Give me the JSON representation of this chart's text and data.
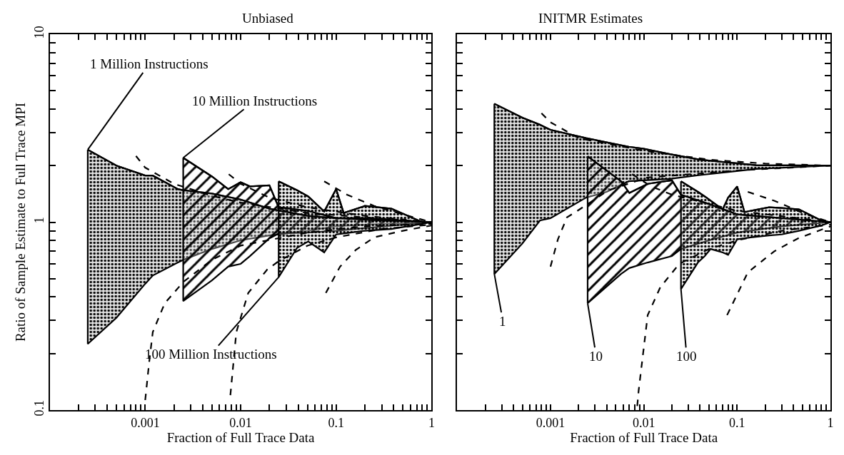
{
  "chart_data": [
    {
      "type": "line",
      "title": "Unbiased",
      "xlabel": "Fraction of Full Trace Data",
      "ylabel": "Ratio of Sample Estimate to Full Trace MPI",
      "log": "xy",
      "xlim": [
        0.0001,
        1
      ],
      "ylim": [
        0.1,
        10
      ],
      "xticks": [
        {
          "value": 0.0002,
          "label": null
        },
        {
          "value": 0.0003,
          "label": null
        },
        {
          "value": 0.0004,
          "label": null
        },
        {
          "value": 0.0005,
          "label": null
        },
        {
          "value": 0.0006,
          "label": null
        },
        {
          "value": 0.0007,
          "label": null
        },
        {
          "value": 0.0008,
          "label": null
        },
        {
          "value": 0.0009,
          "label": null
        },
        0.001,
        {
          "value": 0.002,
          "label": null
        },
        {
          "value": 0.003,
          "label": null
        },
        {
          "value": 0.004,
          "label": null
        },
        {
          "value": 0.005,
          "label": null
        },
        {
          "value": 0.006,
          "label": null
        },
        {
          "value": 0.007,
          "label": null
        },
        {
          "value": 0.008,
          "label": null
        },
        {
          "value": 0.009,
          "label": null
        },
        0.01,
        {
          "value": 0.02,
          "label": null
        },
        {
          "value": 0.03,
          "label": null
        },
        {
          "value": 0.04,
          "label": null
        },
        {
          "value": 0.05,
          "label": null
        },
        {
          "value": 0.06,
          "label": null
        },
        {
          "value": 0.07,
          "label": null
        },
        {
          "value": 0.08,
          "label": null
        },
        {
          "value": 0.09,
          "label": null
        },
        0.1,
        {
          "value": 0.2,
          "label": null
        },
        {
          "value": 0.3,
          "label": null
        },
        {
          "value": 0.4,
          "label": null
        },
        {
          "value": 0.5,
          "label": null
        },
        {
          "value": 0.6,
          "label": null
        },
        {
          "value": 0.7,
          "label": null
        },
        {
          "value": 0.8,
          "label": null
        },
        {
          "value": 0.9,
          "label": null
        },
        1
      ],
      "yticks": [
        0.1,
        {
          "value": 0.2,
          "label": null
        },
        {
          "value": 0.3,
          "label": null
        },
        {
          "value": 0.4,
          "label": null
        },
        {
          "value": 0.5,
          "label": null
        },
        {
          "value": 0.6,
          "label": null
        },
        {
          "value": 0.7,
          "label": null
        },
        {
          "value": 0.8,
          "label": null
        },
        {
          "value": 0.9,
          "label": null
        },
        1,
        {
          "value": 2,
          "label": null
        },
        {
          "value": 3,
          "label": null
        },
        {
          "value": 4,
          "label": null
        },
        {
          "value": 5,
          "label": null
        },
        {
          "value": 6,
          "label": null
        },
        {
          "value": 7,
          "label": null
        },
        {
          "value": 8,
          "label": null
        },
        {
          "value": 9,
          "label": null
        },
        10
      ],
      "series": [
        {
          "color": "#000000",
          "x": [
            0.00025,
            0.0005,
            0.001,
            0.0012,
            0.0022,
            0.0025,
            0.005,
            0.01,
            0.02,
            0.05,
            0.1,
            0.3,
            1
          ],
          "values": [
            2.43,
            2.0,
            1.77,
            1.77,
            1.5,
            1.48,
            1.42,
            1.32,
            1.18,
            1.08,
            1.05,
            1.02,
            1.0
          ],
          "upper": [
            2.43,
            2.0,
            1.77,
            1.77,
            1.5,
            1.48,
            1.42,
            1.32,
            1.18,
            1.08,
            1.05,
            1.02,
            1.0
          ],
          "lower": [
            0.225,
            0.31,
            0.47,
            0.52,
            0.61,
            0.63,
            0.72,
            0.8,
            0.85,
            0.9,
            0.95,
            0.98,
            1.0
          ]
        },
        {
          "color": "#000000",
          "x": [
            0.0025,
            0.005,
            0.0074,
            0.01,
            0.0125,
            0.02,
            0.025,
            0.05,
            0.1,
            0.2,
            0.5,
            1
          ],
          "values": [
            2.2,
            1.75,
            1.5,
            1.63,
            1.55,
            1.57,
            1.2,
            1.15,
            1.05,
            1.05,
            1.02,
            1.0
          ],
          "upper": [
            2.2,
            1.75,
            1.5,
            1.63,
            1.55,
            1.57,
            1.2,
            1.15,
            1.05,
            1.05,
            1.02,
            1.0
          ],
          "lower": [
            0.38,
            0.49,
            0.58,
            0.6,
            0.66,
            0.82,
            0.87,
            0.88,
            0.9,
            0.93,
            0.97,
            1.0
          ]
        },
        {
          "color": "#000000",
          "x": [
            0.025,
            0.039,
            0.051,
            0.075,
            0.1,
            0.12,
            0.2,
            0.38,
            0.8,
            1
          ],
          "values": [
            1.65,
            1.48,
            1.37,
            1.14,
            1.5,
            1.12,
            1.22,
            1.18,
            1.0,
            1.0
          ],
          "upper": [
            1.65,
            1.48,
            1.37,
            1.14,
            1.5,
            1.12,
            1.22,
            1.18,
            1.0,
            1.0
          ],
          "lower": [
            0.51,
            0.73,
            0.79,
            0.69,
            0.86,
            0.87,
            0.9,
            0.92,
            0.98,
            1.0
          ]
        },
        {
          "line_style": "dashed",
          "color": "#000000",
          "x": [
            0.0008,
            0.001,
            0.002,
            0.005,
            0.01,
            0.05,
            0.2,
            1
          ],
          "values": [
            2.25,
            1.95,
            1.6,
            1.38,
            1.27,
            1.12,
            1.06,
            1.0
          ]
        },
        {
          "line_style": "dashed",
          "color": "#000000",
          "x": [
            0.0075,
            0.01,
            0.02,
            0.05,
            0.2,
            1
          ],
          "values": [
            1.8,
            1.6,
            1.35,
            1.2,
            1.08,
            1.0
          ]
        },
        {
          "line_style": "dashed",
          "color": "#000000",
          "x": [
            0.075,
            0.13,
            0.25,
            0.5,
            1
          ],
          "values": [
            1.65,
            1.4,
            1.22,
            1.1,
            1.0
          ]
        },
        {
          "line_style": "dashed",
          "color": "#000000",
          "x": [
            0.001,
            0.0011,
            0.0012,
            0.0016,
            0.0025,
            0.005,
            0.01,
            0.05,
            0.2,
            1
          ],
          "values": [
            0.113,
            0.18,
            0.26,
            0.37,
            0.48,
            0.63,
            0.75,
            0.88,
            0.95,
            0.98
          ]
        },
        {
          "line_style": "dashed",
          "color": "#000000",
          "x": [
            0.0078,
            0.009,
            0.012,
            0.019,
            0.025,
            0.05,
            0.1,
            0.3,
            1
          ],
          "values": [
            0.12,
            0.26,
            0.42,
            0.56,
            0.62,
            0.75,
            0.83,
            0.92,
            0.97
          ]
        },
        {
          "line_style": "dashed",
          "color": "#000000",
          "x": [
            0.078,
            0.11,
            0.16,
            0.25,
            0.5,
            1
          ],
          "values": [
            0.42,
            0.58,
            0.71,
            0.83,
            0.9,
            0.96
          ]
        }
      ],
      "annotations": [
        {
          "text": "1 Million Instructions",
          "x": 0.00025,
          "y": 2.43
        },
        {
          "text": "10 Million Instructions",
          "x": 0.0025,
          "y": 2.2
        },
        {
          "text": "100 Million Instructions",
          "x": 0.025,
          "y": 0.51
        }
      ]
    },
    {
      "type": "line",
      "title": "INITMR Estimates",
      "xlabel": "Fraction of Full Trace Data",
      "log": "xy",
      "tick_labels": "x",
      "xlim": [
        0.0001,
        1
      ],
      "ylim": [
        0.1,
        10
      ],
      "xticks": [
        {
          "value": 0.0002,
          "label": null
        },
        {
          "value": 0.0003,
          "label": null
        },
        {
          "value": 0.0004,
          "label": null
        },
        {
          "value": 0.0005,
          "label": null
        },
        {
          "value": 0.0006,
          "label": null
        },
        {
          "value": 0.0007,
          "label": null
        },
        {
          "value": 0.0008,
          "label": null
        },
        {
          "value": 0.0009,
          "label": null
        },
        0.001,
        {
          "value": 0.002,
          "label": null
        },
        {
          "value": 0.003,
          "label": null
        },
        {
          "value": 0.004,
          "label": null
        },
        {
          "value": 0.005,
          "label": null
        },
        {
          "value": 0.006,
          "label": null
        },
        {
          "value": 0.007,
          "label": null
        },
        {
          "value": 0.008,
          "label": null
        },
        {
          "value": 0.009,
          "label": null
        },
        0.01,
        {
          "value": 0.02,
          "label": null
        },
        {
          "value": 0.03,
          "label": null
        },
        {
          "value": 0.04,
          "label": null
        },
        {
          "value": 0.05,
          "label": null
        },
        {
          "value": 0.06,
          "label": null
        },
        {
          "value": 0.07,
          "label": null
        },
        {
          "value": 0.08,
          "label": null
        },
        {
          "value": 0.09,
          "label": null
        },
        0.1,
        {
          "value": 0.2,
          "label": null
        },
        {
          "value": 0.3,
          "label": null
        },
        {
          "value": 0.4,
          "label": null
        },
        {
          "value": 0.5,
          "label": null
        },
        {
          "value": 0.6,
          "label": null
        },
        {
          "value": 0.7,
          "label": null
        },
        {
          "value": 0.8,
          "label": null
        },
        {
          "value": 0.9,
          "label": null
        },
        1
      ],
      "yticks": [
        0.1,
        {
          "value": 0.2,
          "label": null
        },
        {
          "value": 0.3,
          "label": null
        },
        {
          "value": 0.4,
          "label": null
        },
        {
          "value": 0.5,
          "label": null
        },
        {
          "value": 0.6,
          "label": null
        },
        {
          "value": 0.7,
          "label": null
        },
        {
          "value": 0.8,
          "label": null
        },
        {
          "value": 0.9,
          "label": null
        },
        1,
        {
          "value": 2,
          "label": null
        },
        {
          "value": 3,
          "label": null
        },
        {
          "value": 4,
          "label": null
        },
        {
          "value": 5,
          "label": null
        },
        {
          "value": 6,
          "label": null
        },
        {
          "value": 7,
          "label": null
        },
        {
          "value": 8,
          "label": null
        },
        {
          "value": 9,
          "label": null
        },
        10
      ],
      "series": [
        {
          "color": "#000000",
          "x": [
            0.00025,
            0.0005,
            0.00077,
            0.001,
            0.0024,
            0.004,
            0.0069,
            0.01,
            0.019,
            0.04,
            0.16,
            0.8,
            1
          ],
          "values": [
            4.27,
            3.6,
            3.3,
            3.1,
            2.8,
            2.66,
            2.52,
            2.46,
            2.3,
            2.15,
            2.01,
            2.0,
            2.0
          ],
          "upper": [
            4.27,
            3.6,
            3.3,
            3.1,
            2.8,
            2.66,
            2.52,
            2.46,
            2.3,
            2.15,
            2.01,
            2.0,
            2.0
          ],
          "lower": [
            0.53,
            0.77,
            1.02,
            1.05,
            1.35,
            1.45,
            1.65,
            1.67,
            1.7,
            1.78,
            1.92,
            1.99,
            2.0
          ]
        },
        {
          "color": "#000000",
          "x": [
            0.0025,
            0.0057,
            0.007,
            0.011,
            0.02,
            0.025,
            0.05,
            0.1,
            0.3,
            1
          ],
          "values": [
            2.24,
            1.65,
            1.43,
            1.6,
            1.67,
            1.4,
            1.25,
            1.1,
            1.05,
            1.0
          ],
          "upper": [
            2.24,
            1.65,
            1.43,
            1.6,
            1.67,
            1.4,
            1.25,
            1.1,
            1.05,
            1.0
          ],
          "lower": [
            0.37,
            0.53,
            0.57,
            0.61,
            0.66,
            0.72,
            0.8,
            0.88,
            0.95,
            1.0
          ]
        },
        {
          "color": "#000000",
          "x": [
            0.025,
            0.038,
            0.045,
            0.052,
            0.07,
            0.08,
            0.1,
            0.12,
            0.14,
            0.22,
            0.3,
            0.46,
            0.8,
            1
          ],
          "values": [
            1.65,
            1.45,
            1.37,
            1.3,
            1.17,
            1.35,
            1.55,
            1.13,
            1.15,
            1.2,
            1.19,
            1.17,
            1.02,
            1.0
          ],
          "upper": [
            1.65,
            1.45,
            1.37,
            1.3,
            1.17,
            1.35,
            1.55,
            1.13,
            1.15,
            1.2,
            1.19,
            1.17,
            1.02,
            1.0
          ],
          "lower": [
            0.44,
            0.61,
            0.66,
            0.72,
            0.69,
            0.67,
            0.81,
            0.82,
            0.83,
            0.85,
            0.86,
            0.9,
            0.96,
            1.0
          ]
        },
        {
          "line_style": "dashed",
          "color": "#000000",
          "x": [
            0.0008,
            0.001,
            0.002,
            0.01,
            0.05,
            0.2,
            1
          ],
          "values": [
            3.8,
            3.4,
            2.8,
            2.4,
            2.15,
            2.05,
            2.0
          ]
        },
        {
          "line_style": "dashed",
          "color": "#000000",
          "x": [
            0.001,
            0.0012,
            0.0015,
            0.002,
            0.0042,
            0.011,
            0.032,
            0.11,
            1
          ],
          "values": [
            0.58,
            0.81,
            1.06,
            1.16,
            1.48,
            1.73,
            1.8,
            1.89,
            2.0
          ]
        },
        {
          "line_style": "dashed",
          "color": "#000000",
          "x": [
            0.0075,
            0.012,
            0.02,
            0.05,
            0.1,
            1
          ],
          "values": [
            1.8,
            1.55,
            1.4,
            1.25,
            1.15,
            1.0
          ]
        },
        {
          "line_style": "dashed",
          "color": "#000000",
          "x": [
            0.0085,
            0.0088,
            0.011,
            0.015,
            0.024,
            0.05,
            0.1,
            0.3,
            1
          ],
          "values": [
            0.105,
            0.127,
            0.32,
            0.45,
            0.6,
            0.72,
            0.8,
            0.9,
            0.97
          ]
        },
        {
          "line_style": "dashed",
          "color": "#000000",
          "x": [
            0.13,
            0.25,
            0.55,
            1
          ],
          "values": [
            1.45,
            1.3,
            1.1,
            1.0
          ]
        },
        {
          "line_style": "dashed",
          "color": "#000000",
          "x": [
            0.078,
            0.13,
            0.25,
            0.45,
            1
          ],
          "values": [
            0.32,
            0.54,
            0.7,
            0.82,
            0.95
          ]
        }
      ],
      "annotations": [
        {
          "text": "1",
          "x": 0.00025,
          "y": 0.53
        },
        {
          "text": "10",
          "x": 0.0025,
          "y": 0.37
        },
        {
          "text": "100",
          "x": 0.025,
          "y": 0.44
        }
      ]
    }
  ]
}
